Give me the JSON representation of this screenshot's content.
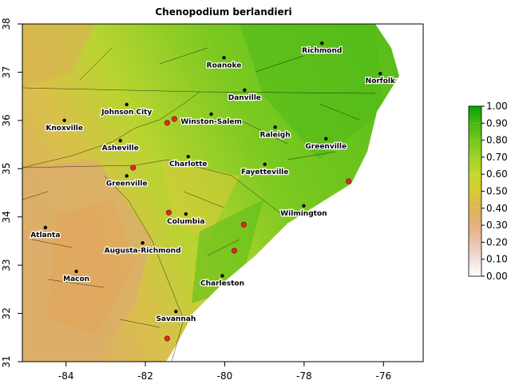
{
  "map": {
    "title": "Chenopodium berlandieri",
    "xlim": [
      -85.1,
      -75
    ],
    "ylim": [
      31,
      38
    ],
    "xticks": [
      -84,
      -82,
      -80,
      -78,
      -76
    ],
    "yticks": [
      31,
      32,
      33,
      34,
      35,
      36,
      37,
      38
    ],
    "cities": [
      {
        "name": "Roanoke",
        "lon": -80.02,
        "lat": 37.3
      },
      {
        "name": "Richmond",
        "lon": -77.55,
        "lat": 37.6
      },
      {
        "name": "Norfolk",
        "lon": -76.08,
        "lat": 36.97
      },
      {
        "name": "Danville",
        "lon": -79.5,
        "lat": 36.63
      },
      {
        "name": "Johnson City",
        "lon": -82.47,
        "lat": 36.33
      },
      {
        "name": "Knoxville",
        "lon": -84.04,
        "lat": 36.0
      },
      {
        "name": "Winston-Salem",
        "lon": -80.34,
        "lat": 36.13
      },
      {
        "name": "Raleigh",
        "lon": -78.73,
        "lat": 35.86
      },
      {
        "name": "Greenville",
        "lon": -77.45,
        "lat": 35.62
      },
      {
        "name": "Asheville",
        "lon": -82.63,
        "lat": 35.58
      },
      {
        "name": "Charlotte",
        "lon": -80.92,
        "lat": 35.25
      },
      {
        "name": "Fayetteville",
        "lon": -78.99,
        "lat": 35.09
      },
      {
        "name": "Greenville",
        "lon": -82.47,
        "lat": 34.85
      },
      {
        "name": "Wilmington",
        "lon": -78.01,
        "lat": 34.23
      },
      {
        "name": "Columbia",
        "lon": -80.98,
        "lat": 34.06
      },
      {
        "name": "Atlanta",
        "lon": -84.52,
        "lat": 33.78
      },
      {
        "name": "Augusta-Richmond",
        "lon": -82.07,
        "lat": 33.46
      },
      {
        "name": "Macon",
        "lon": -83.74,
        "lat": 32.87
      },
      {
        "name": "Charleston",
        "lon": -80.06,
        "lat": 32.78
      },
      {
        "name": "Savannah",
        "lon": -81.23,
        "lat": 32.04
      }
    ],
    "occurrences": [
      {
        "lon": -81.27,
        "lat": 36.03
      },
      {
        "lon": -81.45,
        "lat": 35.95
      },
      {
        "lon": -82.31,
        "lat": 35.02
      },
      {
        "lon": -81.41,
        "lat": 34.09
      },
      {
        "lon": -79.52,
        "lat": 33.84
      },
      {
        "lon": -79.76,
        "lat": 33.3
      },
      {
        "lon": -76.88,
        "lat": 34.74
      },
      {
        "lon": -81.45,
        "lat": 31.48
      }
    ],
    "occurrence_color": "#e8262b",
    "colorbar": {
      "lim": [
        0,
        1
      ],
      "ticks": [
        {
          "value": 0,
          "label": "0.00"
        },
        {
          "value": 0.1,
          "label": "0.10"
        },
        {
          "value": 0.2,
          "label": "0.20"
        },
        {
          "value": 0.3,
          "label": "0.30"
        },
        {
          "value": 0.4,
          "label": "0.40"
        },
        {
          "value": 0.5,
          "label": "0.50"
        },
        {
          "value": 0.6,
          "label": "0.60"
        },
        {
          "value": 0.7,
          "label": "0.70"
        },
        {
          "value": 0.8,
          "label": "0.80"
        },
        {
          "value": 0.9,
          "label": "0.90"
        },
        {
          "value": 1,
          "label": "1.00"
        }
      ],
      "colors": [
        "#ffffff",
        "#f2dcd8",
        "#eac2ad",
        "#e4b07f",
        "#dcb653",
        "#d8cc33",
        "#c3d82a",
        "#9fd127",
        "#73c71e",
        "#45b814",
        "#00a600"
      ]
    }
  }
}
